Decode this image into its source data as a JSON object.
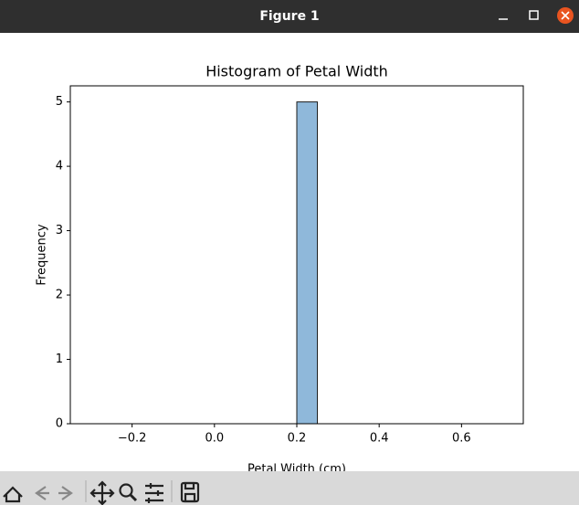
{
  "window": {
    "title": "Figure 1"
  },
  "chart_data": {
    "type": "histogram",
    "title": "Histogram of Petal Width",
    "x_label": "Petal Width (cm)",
    "y_label": "Frequency",
    "bins": [
      -0.3,
      -0.25,
      -0.2,
      -0.15,
      -0.1,
      -0.05,
      0,
      0.05,
      0.1,
      0.15,
      0.2,
      0.25,
      0.3,
      0.35,
      0.4,
      0.45,
      0.5,
      0.55,
      0.6,
      0.65,
      0.7
    ],
    "values": [
      0,
      0,
      0,
      0,
      0,
      0,
      0,
      0,
      0,
      0,
      5,
      0,
      0,
      0,
      0,
      0,
      0,
      0,
      0,
      0
    ],
    "color": "#8fb8da",
    "edgecolor": "#1a1a1a",
    "xlim": [
      -0.35,
      0.75
    ],
    "xticks": [
      {
        "value": -0.2,
        "label": "−0.2"
      },
      {
        "value": 0,
        "label": "0.0"
      },
      0.2,
      0.4,
      0.6
    ],
    "ylim": [
      0,
      5.25
    ],
    "yticks": [
      0,
      1,
      2,
      3,
      4,
      5
    ],
    "grid": false
  }
}
